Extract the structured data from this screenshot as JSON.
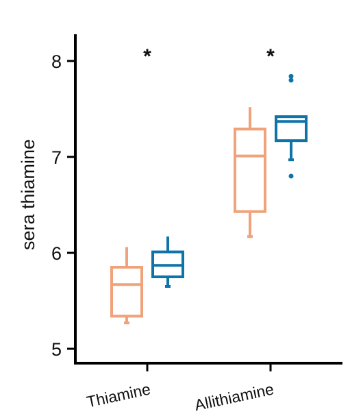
{
  "chart_data": {
    "type": "box",
    "title": "",
    "xlabel": "",
    "ylabel": "sera thiamine",
    "ylim": [
      4.88,
      8.32
    ],
    "y_ticks": [
      5,
      6,
      7,
      8
    ],
    "y_tick_labels": [
      "5",
      "6",
      "7",
      "8"
    ],
    "categories": [
      "Thiamine",
      "Allithiamine"
    ],
    "significance": [
      "*",
      "*"
    ],
    "grid": false,
    "legend": "none",
    "series": [
      {
        "color": "#f0a37a",
        "boxes": [
          {
            "whisker_low": 5.27,
            "q1": 5.34,
            "median": 5.67,
            "q3": 5.85,
            "whisker_high": 6.06,
            "outliers": []
          },
          {
            "whisker_low": 6.17,
            "q1": 6.43,
            "median": 7.01,
            "q3": 7.29,
            "whisker_high": 7.52,
            "outliers": []
          }
        ]
      },
      {
        "color": "#0e74a8",
        "boxes": [
          {
            "whisker_low": 5.65,
            "q1": 5.75,
            "median": 5.87,
            "q3": 6.01,
            "whisker_high": 6.17,
            "outliers": []
          },
          {
            "whisker_low": 6.97,
            "q1": 7.17,
            "median": 7.37,
            "q3": 7.42,
            "whisker_high": 7.42,
            "outliers": [
              6.8,
              7.8,
              7.84
            ]
          }
        ]
      }
    ]
  }
}
